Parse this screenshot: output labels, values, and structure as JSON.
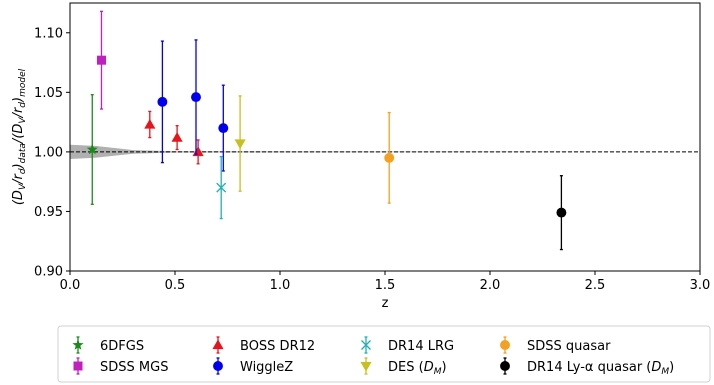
{
  "chart_data": {
    "type": "scatter",
    "xlabel": "z",
    "ylabel": "(D_V/r_d)_data/(D_V/r_d)_model",
    "xlim": [
      0.0,
      3.0
    ],
    "ylim": [
      0.9,
      1.125
    ],
    "xticks": [
      0.0,
      0.5,
      1.0,
      1.5,
      2.0,
      2.5,
      3.0
    ],
    "xtick_labels": [
      "0.0",
      "0.5",
      "1.0",
      "1.5",
      "2.0",
      "2.5",
      "3.0"
    ],
    "yticks": [
      0.9,
      0.95,
      1.0,
      1.05,
      1.1
    ],
    "ytick_labels": [
      "0.90",
      "0.95",
      "1.00",
      "1.05",
      "1.10"
    ],
    "reference_line": 1.0,
    "model_band": {
      "color": "#b0b0b0",
      "points": [
        {
          "x": 0.0,
          "lo": 0.994,
          "hi": 1.006
        },
        {
          "x": 0.12,
          "lo": 0.995,
          "hi": 1.005
        },
        {
          "x": 0.3,
          "lo": 0.9985,
          "hi": 1.0015
        },
        {
          "x": 0.5,
          "lo": 0.9995,
          "hi": 1.0005
        },
        {
          "x": 3.0,
          "lo": 1.0,
          "hi": 1.0
        }
      ]
    },
    "series": [
      {
        "name": "6DFGS",
        "color": "#1a8a1a",
        "marker": "star",
        "points": [
          {
            "x": 0.106,
            "y": 1.002,
            "err": 0.046
          }
        ]
      },
      {
        "name": "SDSS MGS",
        "color": "#c020c0",
        "marker": "square",
        "points": [
          {
            "x": 0.15,
            "y": 1.077,
            "err": 0.041
          }
        ]
      },
      {
        "name": "BOSS DR12",
        "color": "#e8141c",
        "marker": "triangle",
        "points": [
          {
            "x": 0.38,
            "y": 1.023,
            "err": 0.011
          },
          {
            "x": 0.51,
            "y": 1.012,
            "err": 0.01
          },
          {
            "x": 0.61,
            "y": 1.0,
            "err": 0.01
          }
        ]
      },
      {
        "name": "WiggleZ",
        "color": "#0000ee",
        "marker": "circle",
        "points": [
          {
            "x": 0.44,
            "y": 1.042,
            "err": 0.051
          },
          {
            "x": 0.6,
            "y": 1.046,
            "err": 0.048
          },
          {
            "x": 0.73,
            "y": 1.02,
            "err": 0.036
          }
        ]
      },
      {
        "name": "DR14 LRG",
        "color": "#20b0b8",
        "marker": "x",
        "points": [
          {
            "x": 0.72,
            "y": 0.97,
            "err": 0.026
          }
        ]
      },
      {
        "name": "DES (D_M)",
        "color": "#c8c020",
        "marker": "triangle-down",
        "points": [
          {
            "x": 0.81,
            "y": 1.007,
            "err": 0.04
          }
        ]
      },
      {
        "name": "SDSS quasar",
        "color": "#f5a020",
        "marker": "circle",
        "points": [
          {
            "x": 1.52,
            "y": 0.995,
            "err": 0.038
          }
        ]
      },
      {
        "name": "DR14 Ly-α quasar (D_M)",
        "color": "#000000",
        "marker": "circle",
        "points": [
          {
            "x": 2.34,
            "y": 0.949,
            "err": 0.031
          }
        ]
      }
    ],
    "legend": {
      "placement": "bottom",
      "columns": 4,
      "entries": [
        "6DFGS",
        "SDSS MGS",
        "BOSS DR12",
        "WiggleZ",
        "DR14 LRG",
        "DES (D_M)",
        "SDSS quasar",
        "DR14 Ly-α quasar (D_M)"
      ]
    }
  }
}
